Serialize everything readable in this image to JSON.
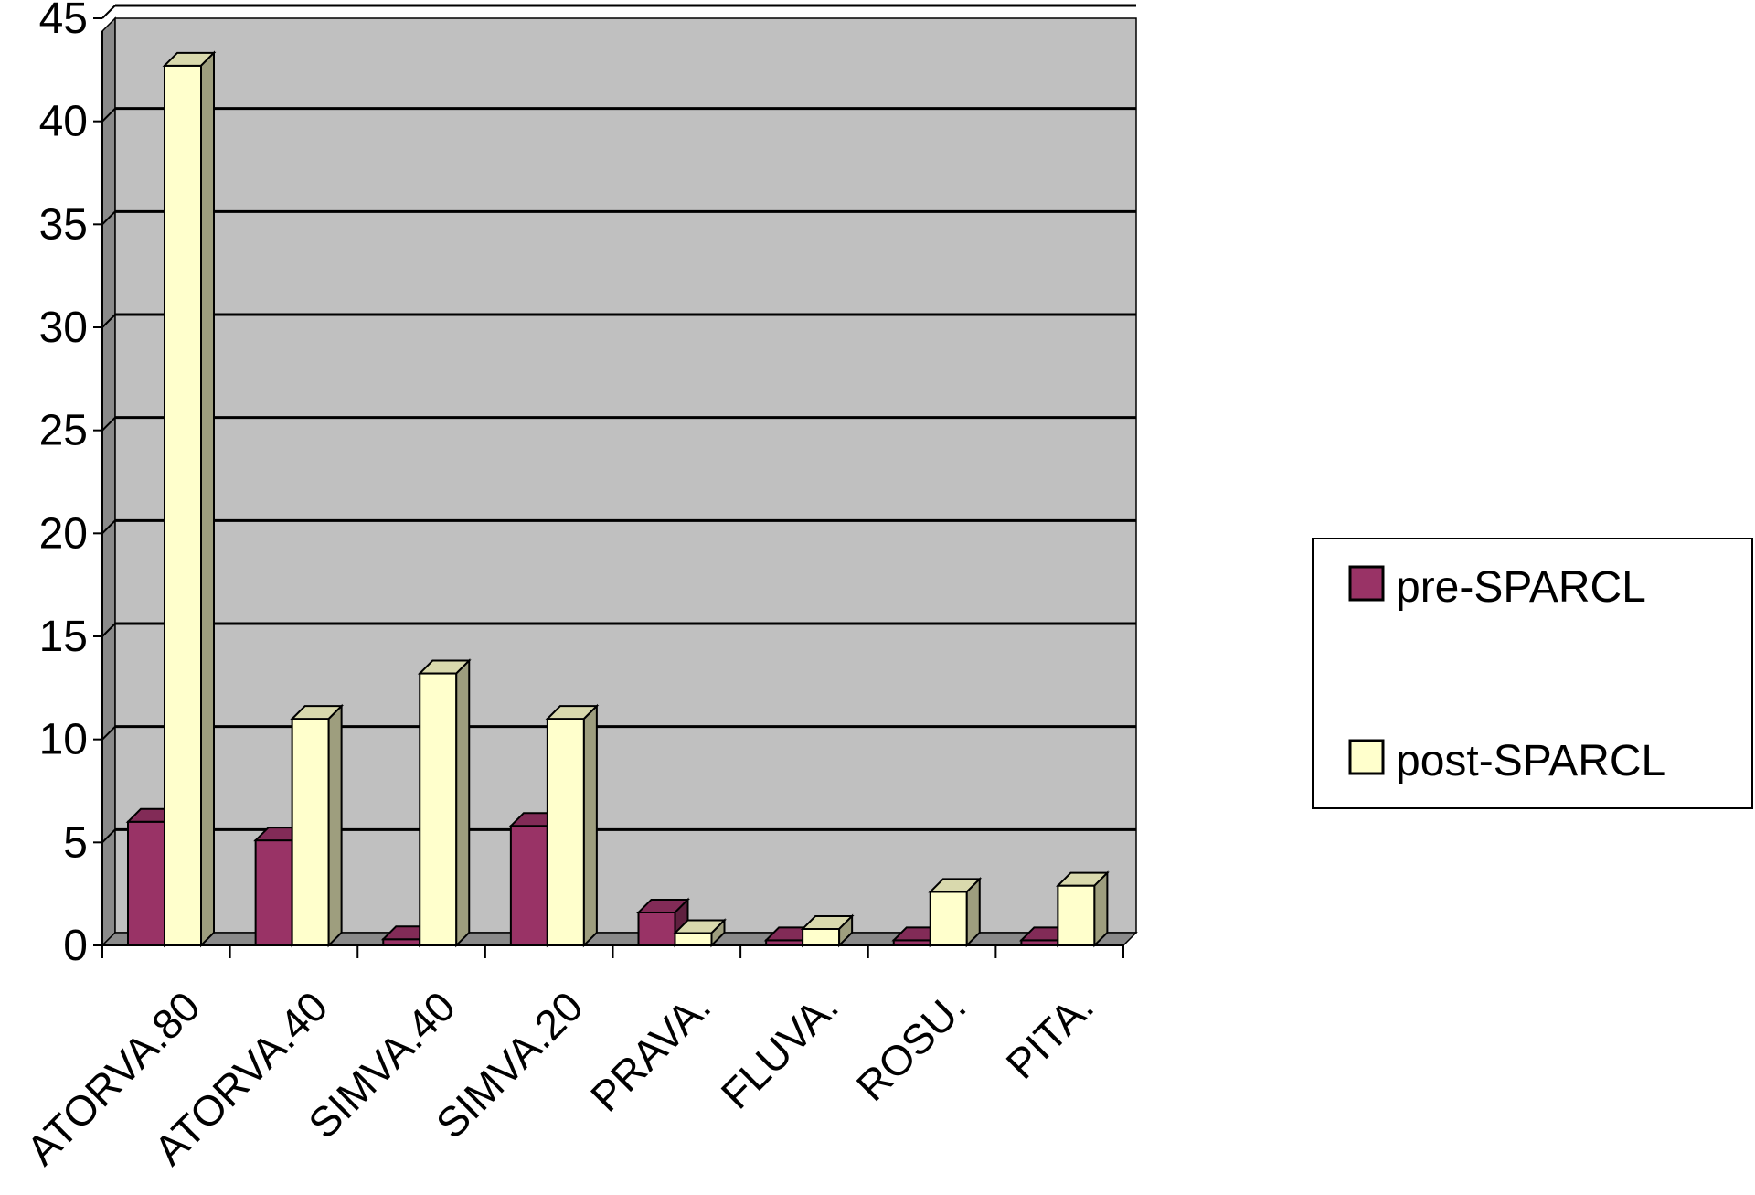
{
  "chart_data": {
    "type": "bar",
    "categories": [
      "ATORVA.80",
      "ATORVA.40",
      "SIMVA.40",
      "SIMVA.20",
      "PRAVA.",
      "FLUVA.",
      "ROSU.",
      "PITA."
    ],
    "series": [
      {
        "name": "pre-SPARCL",
        "values": [
          6.0,
          5.1,
          0.3,
          5.8,
          1.6,
          0.25,
          0.25,
          0.25
        ],
        "color": "#993366"
      },
      {
        "name": "post-SPARCL",
        "values": [
          42.7,
          11.0,
          13.2,
          11.0,
          0.6,
          0.8,
          2.6,
          2.9
        ],
        "color": "#FFFFCC"
      }
    ],
    "ylim": [
      0,
      45
    ],
    "yticks": [
      0,
      5,
      10,
      15,
      20,
      25,
      30,
      35,
      40,
      45
    ],
    "grid": true,
    "plot_background": "#C0C0C0",
    "legend_position": "right"
  }
}
